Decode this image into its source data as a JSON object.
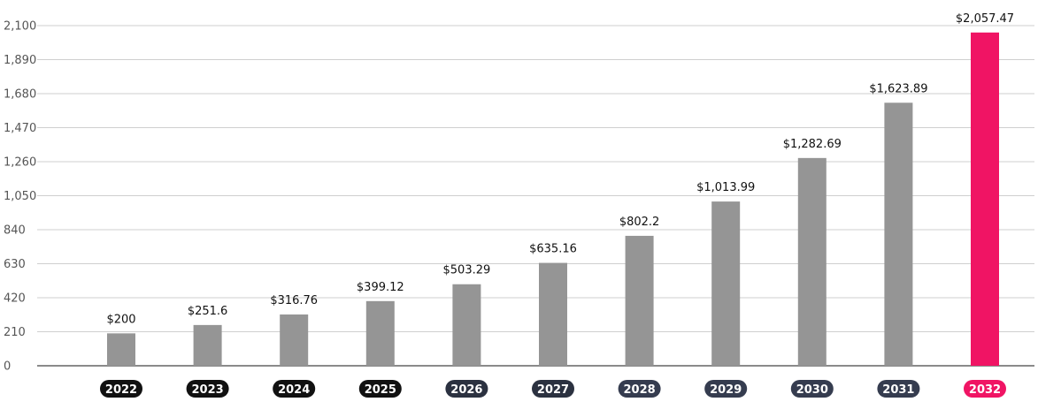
{
  "chart_data": {
    "type": "bar",
    "categories": [
      "2022",
      "2023",
      "2024",
      "2025",
      "2026",
      "2027",
      "2028",
      "2029",
      "2030",
      "2031",
      "2032"
    ],
    "values": [
      200,
      251.6,
      316.76,
      399.12,
      503.29,
      635.16,
      802.2,
      1013.99,
      1282.69,
      1623.89,
      2057.47
    ],
    "data_labels": [
      "$200",
      "$251.6",
      "$316.76",
      "$399.12",
      "$503.29",
      "$635.16",
      "$802.2",
      "$1,013.99",
      "$1,282.69",
      "$1,623.89",
      "$2,057.47"
    ],
    "yticks": [
      0,
      210,
      420,
      630,
      840,
      1050,
      1260,
      1470,
      1680,
      1890,
      2100
    ],
    "ytick_labels": [
      "0",
      "210",
      "420",
      "630",
      "840",
      "1,050",
      "1,260",
      "1,470",
      "1,680",
      "1,890",
      "2,100"
    ],
    "ylim": [
      0,
      2100
    ],
    "grid": true,
    "legend": "none",
    "title": "",
    "xlabel": "",
    "ylabel": "",
    "bar_color": "#959595",
    "highlight_color": "#f01464",
    "highlight_index": 10,
    "category_badge_colors": [
      "#111111",
      "#111111",
      "#111111",
      "#111111",
      "#2b3140",
      "#2b3140",
      "#353c4f",
      "#353c4f",
      "#353c4f",
      "#353c4f",
      "#f01464"
    ]
  }
}
